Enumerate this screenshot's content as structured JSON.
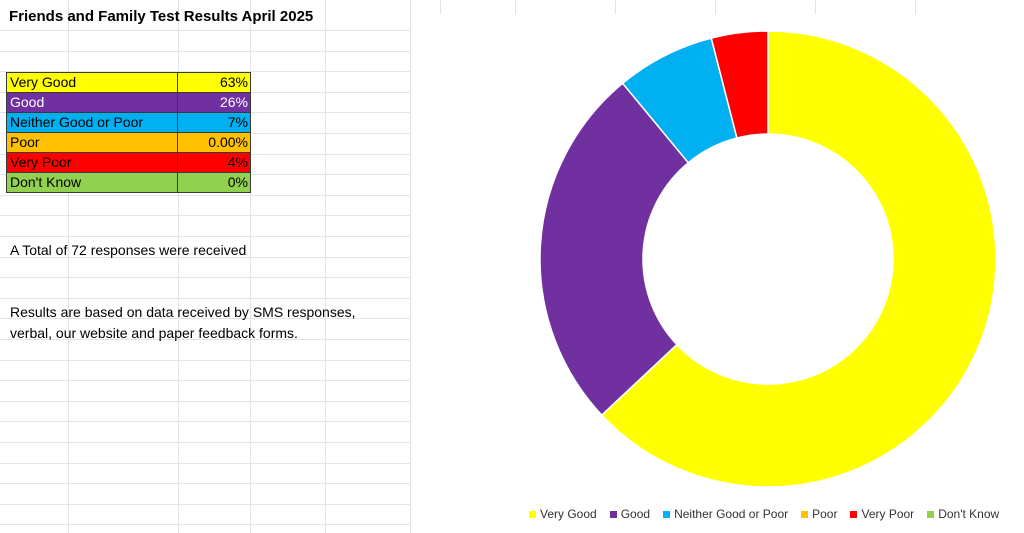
{
  "sheet": {
    "title": "Friends and Family Test Results April 2025",
    "total_note": "A Total of 72 responses were received",
    "source_note": "Results are based on data received by SMS responses, verbal, our website and paper feedback forms."
  },
  "table": [
    {
      "label": "Very Good",
      "value": "63%",
      "bg": "#ffff00",
      "fg": "#000000"
    },
    {
      "label": "Good",
      "value": "26%",
      "bg": "#7030a0",
      "fg": "#ffffff"
    },
    {
      "label": "Neither Good or Poor",
      "value": "7%",
      "bg": "#00b0f0",
      "fg": "#000000"
    },
    {
      "label": "Poor",
      "value": "0.00%",
      "bg": "#ffc000",
      "fg": "#000000"
    },
    {
      "label": "Very Poor",
      "value": "4%",
      "bg": "#ff0000",
      "fg": "#000000"
    },
    {
      "label": "Don't Know",
      "value": "0%",
      "bg": "#92d050",
      "fg": "#000000"
    }
  ],
  "chart_data": {
    "type": "pie",
    "subtype": "doughnut",
    "categories": [
      "Very Good",
      "Good",
      "Neither Good or Poor",
      "Poor",
      "Very Poor",
      "Don't Know"
    ],
    "values": [
      63,
      26,
      7,
      0,
      4,
      0
    ],
    "colors": [
      "#ffff00",
      "#7030a0",
      "#00b0f0",
      "#ffc000",
      "#ff0000",
      "#92d050"
    ],
    "legend_position": "bottom",
    "title": ""
  }
}
